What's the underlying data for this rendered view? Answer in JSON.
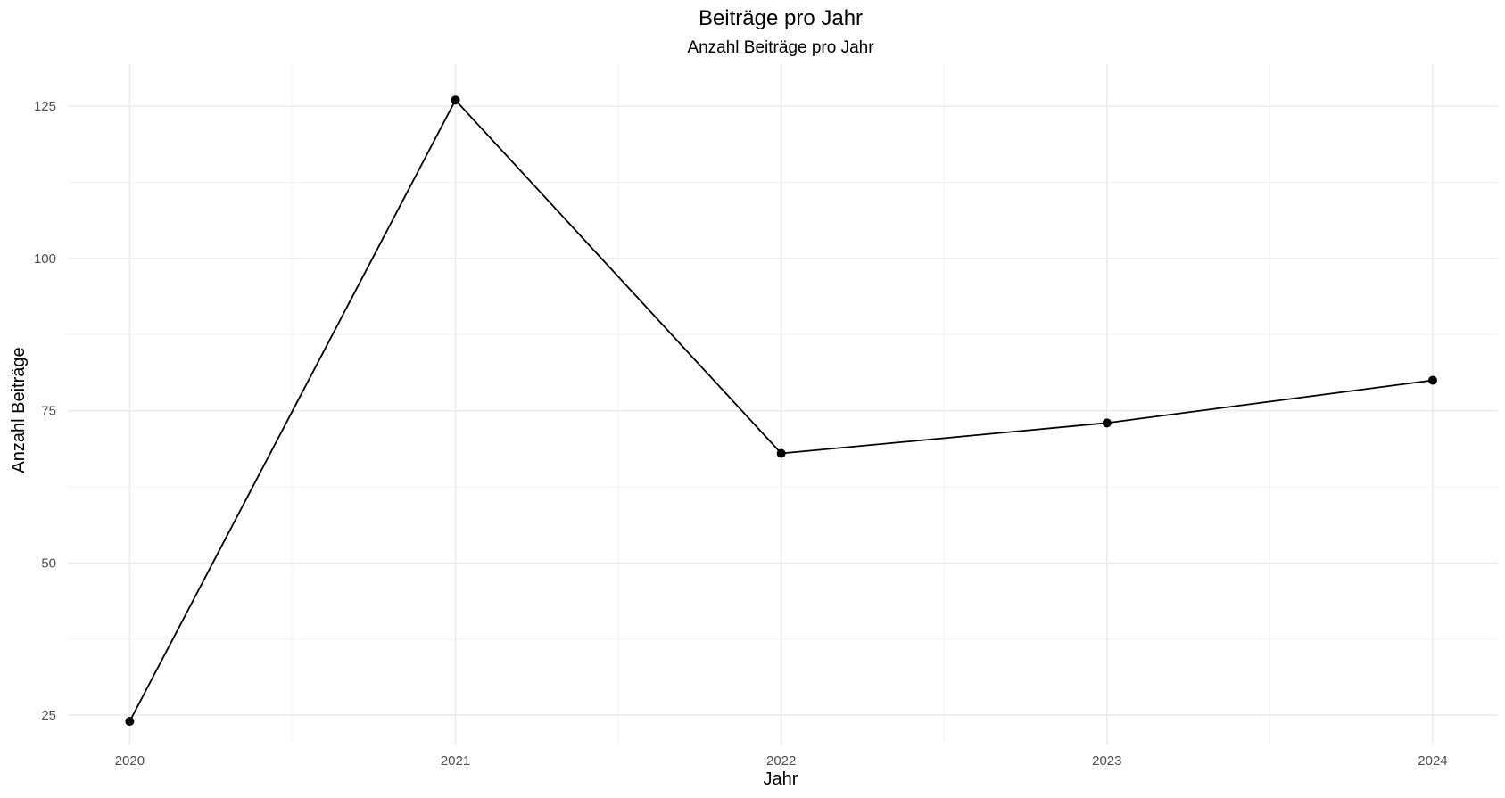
{
  "chart_data": {
    "type": "line",
    "title": "Beiträge pro Jahr",
    "subtitle": "Anzahl Beiträge pro Jahr",
    "xlabel": "Jahr",
    "ylabel": "Anzahl Beiträge",
    "x": [
      2020,
      2021,
      2022,
      2023,
      2024
    ],
    "x_tick_labels": [
      "2020",
      "2021",
      "2022",
      "2023",
      "2024"
    ],
    "y_ticks": [
      25,
      50,
      75,
      100,
      125
    ],
    "y_tick_labels": [
      "25",
      "50",
      "75",
      "100",
      "125"
    ],
    "xlim": [
      2019.81,
      2024.2
    ],
    "ylim": [
      20.2,
      131.9
    ],
    "series": [
      {
        "values": [
          24,
          126,
          68,
          73,
          80
        ]
      }
    ],
    "grid": true,
    "legend": "none",
    "colors": {
      "line": "#000000",
      "point": "#000000",
      "grid": "#ebebeb"
    }
  }
}
